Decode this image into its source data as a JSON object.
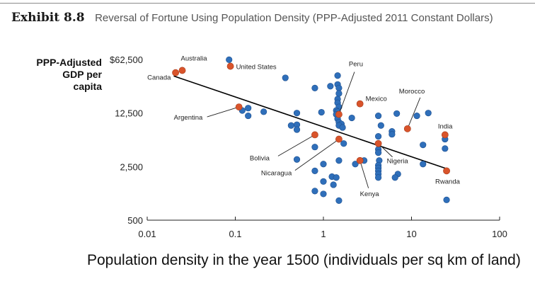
{
  "header": {
    "exhibit": "Exhibit 8.8",
    "title": "Reversal of Fortune Using Population Density (PPP-Adjusted 2011 Constant Dollars)"
  },
  "chart_data": {
    "type": "scatter",
    "ylabel_lines": [
      "PPP-Adjusted",
      "GDP per",
      "capita"
    ],
    "xlabel": "Population density in the year 1500 (individuals per sq km of land)",
    "x_scale": "log",
    "y_scale": "log",
    "xlim": [
      0.01,
      100
    ],
    "ylim": [
      500,
      62500
    ],
    "x_ticks": [
      0.01,
      0.1,
      1,
      10,
      100
    ],
    "x_tick_labels": [
      "0.01",
      "0.1",
      "1",
      "10",
      "100"
    ],
    "y_ticks": [
      500,
      2500,
      12500,
      62500
    ],
    "y_tick_labels": [
      "500",
      "2,500",
      "12,500",
      "$62,500"
    ],
    "grid": false,
    "colors": {
      "other": "#2f6fba",
      "highlighted": "#d9542b",
      "trendline": "#000000"
    },
    "trendline": {
      "from": [
        0.02,
        38000
      ],
      "to": [
        25,
        2350
      ]
    },
    "highlighted_points": [
      {
        "label": "Australia",
        "x": 0.025,
        "y": 45000
      },
      {
        "label": "Canada",
        "x": 0.021,
        "y": 42000
      },
      {
        "label": "United States",
        "x": 0.088,
        "y": 51000
      },
      {
        "label": "Argentina",
        "x": 0.11,
        "y": 15000
      },
      {
        "label": "Peru",
        "x": 1.5,
        "y": 12000
      },
      {
        "label": "Mexico",
        "x": 2.6,
        "y": 16500
      },
      {
        "label": "Morocco",
        "x": 9,
        "y": 7800
      },
      {
        "label": "India",
        "x": 24,
        "y": 6500
      },
      {
        "label": "Bolivia",
        "x": 0.8,
        "y": 6500
      },
      {
        "label": "Nicaragua",
        "x": 1.5,
        "y": 5700
      },
      {
        "label": "Kenya",
        "x": 2.6,
        "y": 3000
      },
      {
        "label": "Nigeria",
        "x": 4.2,
        "y": 5000
      },
      {
        "label": "Rwanda",
        "x": 25,
        "y": 2200
      }
    ],
    "other_points": [
      {
        "x": 0.085,
        "y": 62000
      },
      {
        "x": 0.37,
        "y": 36000
      },
      {
        "x": 1.45,
        "y": 38500
      },
      {
        "x": 1.2,
        "y": 28000
      },
      {
        "x": 1.45,
        "y": 29500
      },
      {
        "x": 0.8,
        "y": 26500
      },
      {
        "x": 1.5,
        "y": 26500
      },
      {
        "x": 1.5,
        "y": 22500
      },
      {
        "x": 1.45,
        "y": 19000
      },
      {
        "x": 1.45,
        "y": 17000
      },
      {
        "x": 1.5,
        "y": 15000
      },
      {
        "x": 1.4,
        "y": 13500
      },
      {
        "x": 1.45,
        "y": 13000
      },
      {
        "x": 1.4,
        "y": 12000
      },
      {
        "x": 0.14,
        "y": 14500
      },
      {
        "x": 0.12,
        "y": 13500
      },
      {
        "x": 0.21,
        "y": 13000
      },
      {
        "x": 0.14,
        "y": 11500
      },
      {
        "x": 0.5,
        "y": 12500
      },
      {
        "x": 0.95,
        "y": 12800
      },
      {
        "x": 1.45,
        "y": 10500
      },
      {
        "x": 1.5,
        "y": 9500
      },
      {
        "x": 1.6,
        "y": 9000
      },
      {
        "x": 1.5,
        "y": 8600
      },
      {
        "x": 1.65,
        "y": 8100
      },
      {
        "x": 2.1,
        "y": 10800
      },
      {
        "x": 4.2,
        "y": 11500
      },
      {
        "x": 4.5,
        "y": 8600
      },
      {
        "x": 6.8,
        "y": 12300
      },
      {
        "x": 11.5,
        "y": 11500
      },
      {
        "x": 15.5,
        "y": 12500
      },
      {
        "x": 0.43,
        "y": 8600
      },
      {
        "x": 0.5,
        "y": 8800
      },
      {
        "x": 0.5,
        "y": 7600
      },
      {
        "x": 6,
        "y": 7200
      },
      {
        "x": 6,
        "y": 6600
      },
      {
        "x": 4.2,
        "y": 6200
      },
      {
        "x": 24,
        "y": 5700
      },
      {
        "x": 1.7,
        "y": 5000
      },
      {
        "x": 13.5,
        "y": 4800
      },
      {
        "x": 0.8,
        "y": 4500
      },
      {
        "x": 4.2,
        "y": 4200
      },
      {
        "x": 4.2,
        "y": 3800
      },
      {
        "x": 0.5,
        "y": 3100
      },
      {
        "x": 1.5,
        "y": 3000
      },
      {
        "x": 2.9,
        "y": 3000
      },
      {
        "x": 4.3,
        "y": 3000
      },
      {
        "x": 1,
        "y": 2700
      },
      {
        "x": 2.3,
        "y": 2700
      },
      {
        "x": 4.2,
        "y": 2600
      },
      {
        "x": 4.2,
        "y": 2400
      },
      {
        "x": 4.2,
        "y": 2200
      },
      {
        "x": 7,
        "y": 2000
      },
      {
        "x": 13.5,
        "y": 2700
      },
      {
        "x": 24,
        "y": 4300
      },
      {
        "x": 0.8,
        "y": 2200
      },
      {
        "x": 4.2,
        "y": 2000
      },
      {
        "x": 4.2,
        "y": 1800
      },
      {
        "x": 6.5,
        "y": 1800
      },
      {
        "x": 1.25,
        "y": 1850
      },
      {
        "x": 1.4,
        "y": 1800
      },
      {
        "x": 1,
        "y": 1600
      },
      {
        "x": 1.3,
        "y": 1450
      },
      {
        "x": 0.8,
        "y": 1200
      },
      {
        "x": 1,
        "y": 1100
      },
      {
        "x": 1.5,
        "y": 900
      },
      {
        "x": 25,
        "y": 920
      }
    ]
  }
}
